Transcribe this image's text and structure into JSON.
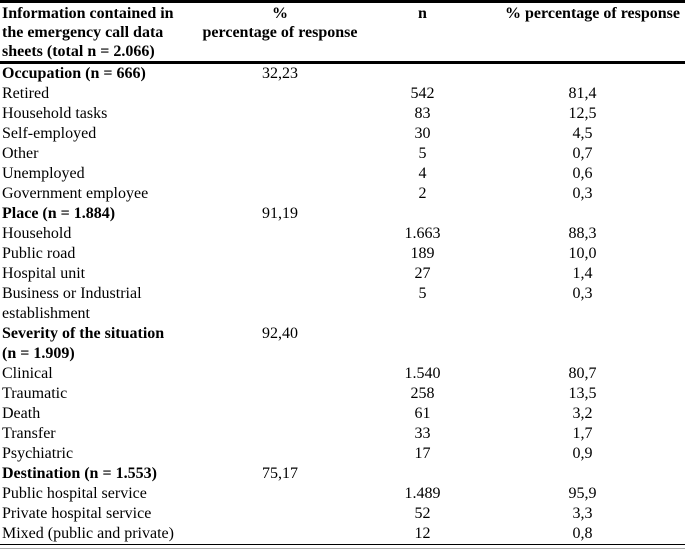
{
  "table": {
    "header": {
      "col1": "Information contained in\nthe emergency call data\nsheets (total n = 2.066)",
      "col2": "%\npercentage of response",
      "col3": "n",
      "col4": "% percentage of response"
    },
    "rows": [
      {
        "label": "Occupation (n = 666)",
        "bold": true,
        "pct_response": "32,23",
        "n": "",
        "pct": ""
      },
      {
        "label": "Retired",
        "bold": false,
        "pct_response": "",
        "n": "542",
        "pct": "81,4"
      },
      {
        "label": "Household tasks",
        "bold": false,
        "pct_response": "",
        "n": "83",
        "pct": "12,5"
      },
      {
        "label": "Self-employed",
        "bold": false,
        "pct_response": "",
        "n": "30",
        "pct": "4,5"
      },
      {
        "label": "Other",
        "bold": false,
        "pct_response": "",
        "n": "5",
        "pct": "0,7"
      },
      {
        "label": "Unemployed",
        "bold": false,
        "pct_response": "",
        "n": "4",
        "pct": "0,6"
      },
      {
        "label": "Government employee",
        "bold": false,
        "pct_response": "",
        "n": "2",
        "pct": "0,3"
      },
      {
        "label": "Place (n = 1.884)",
        "bold": true,
        "pct_response": "91,19",
        "n": "",
        "pct": ""
      },
      {
        "label": "Household",
        "bold": false,
        "pct_response": "",
        "n": "1.663",
        "pct": "88,3"
      },
      {
        "label": "Public road",
        "bold": false,
        "pct_response": "",
        "n": "189",
        "pct": "10,0"
      },
      {
        "label": "Hospital unit",
        "bold": false,
        "pct_response": "",
        "n": "27",
        "pct": "1,4"
      },
      {
        "label": "Business or Industrial\nestablishment",
        "bold": false,
        "pct_response": "",
        "n": "5",
        "pct": "0,3"
      },
      {
        "label": "Severity of the situation\n(n = 1.909)",
        "bold": true,
        "pct_response": "92,40",
        "n": "",
        "pct": ""
      },
      {
        "label": "Clinical",
        "bold": false,
        "pct_response": "",
        "n": "1.540",
        "pct": "80,7"
      },
      {
        "label": "Traumatic",
        "bold": false,
        "pct_response": "",
        "n": "258",
        "pct": "13,5"
      },
      {
        "label": "Death",
        "bold": false,
        "pct_response": "",
        "n": "61",
        "pct": "3,2"
      },
      {
        "label": "Transfer",
        "bold": false,
        "pct_response": "",
        "n": "33",
        "pct": "1,7"
      },
      {
        "label": "Psychiatric",
        "bold": false,
        "pct_response": "",
        "n": "17",
        "pct": "0,9"
      },
      {
        "label": "Destination (n = 1.553)",
        "bold": true,
        "pct_response": "75,17",
        "n": "",
        "pct": ""
      },
      {
        "label": "Public hospital service",
        "bold": false,
        "pct_response": "",
        "n": "1.489",
        "pct": "95,9"
      },
      {
        "label": "Private hospital service",
        "bold": false,
        "pct_response": "",
        "n": "52",
        "pct": "3,3"
      },
      {
        "label": "Mixed (public and private)",
        "bold": false,
        "pct_response": "",
        "n": "12",
        "pct": "0,8"
      }
    ]
  },
  "colors": {
    "text": "#000000",
    "border": "#000000",
    "bottom_gray_rule": "#a8a8a8",
    "background": "#ffffff"
  }
}
